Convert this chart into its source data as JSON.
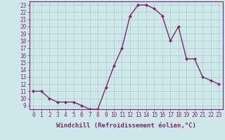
{
  "x": [
    0,
    1,
    2,
    3,
    4,
    5,
    6,
    7,
    8,
    9,
    10,
    11,
    12,
    13,
    14,
    15,
    16,
    17,
    18,
    19,
    20,
    21,
    22,
    23
  ],
  "y": [
    11,
    11,
    10,
    9.5,
    9.5,
    9.5,
    9,
    8.5,
    8.5,
    11.5,
    14.5,
    17,
    21.5,
    23,
    23,
    22.5,
    21.5,
    18,
    20,
    15.5,
    15.5,
    13,
    12.5,
    12
  ],
  "line_color": "#882277",
  "marker": "D",
  "marker_size": 2.0,
  "bg_color": "#cce8e8",
  "grid_color": "#aacccc",
  "xlabel": "Windchill (Refroidissement éolien,°C)",
  "xlabel_color": "#882277",
  "xlim": [
    -0.5,
    23.5
  ],
  "ylim": [
    8.5,
    23.5
  ],
  "yticks": [
    9,
    10,
    11,
    12,
    13,
    14,
    15,
    16,
    17,
    18,
    19,
    20,
    21,
    22,
    23
  ],
  "xticks": [
    0,
    1,
    2,
    3,
    4,
    5,
    6,
    7,
    8,
    9,
    10,
    11,
    12,
    13,
    14,
    15,
    16,
    17,
    18,
    19,
    20,
    21,
    22,
    23
  ],
  "tick_label_color": "#882277",
  "spine_color": "#882277",
  "tick_fontsize": 5.5,
  "xlabel_fontsize": 6.5
}
